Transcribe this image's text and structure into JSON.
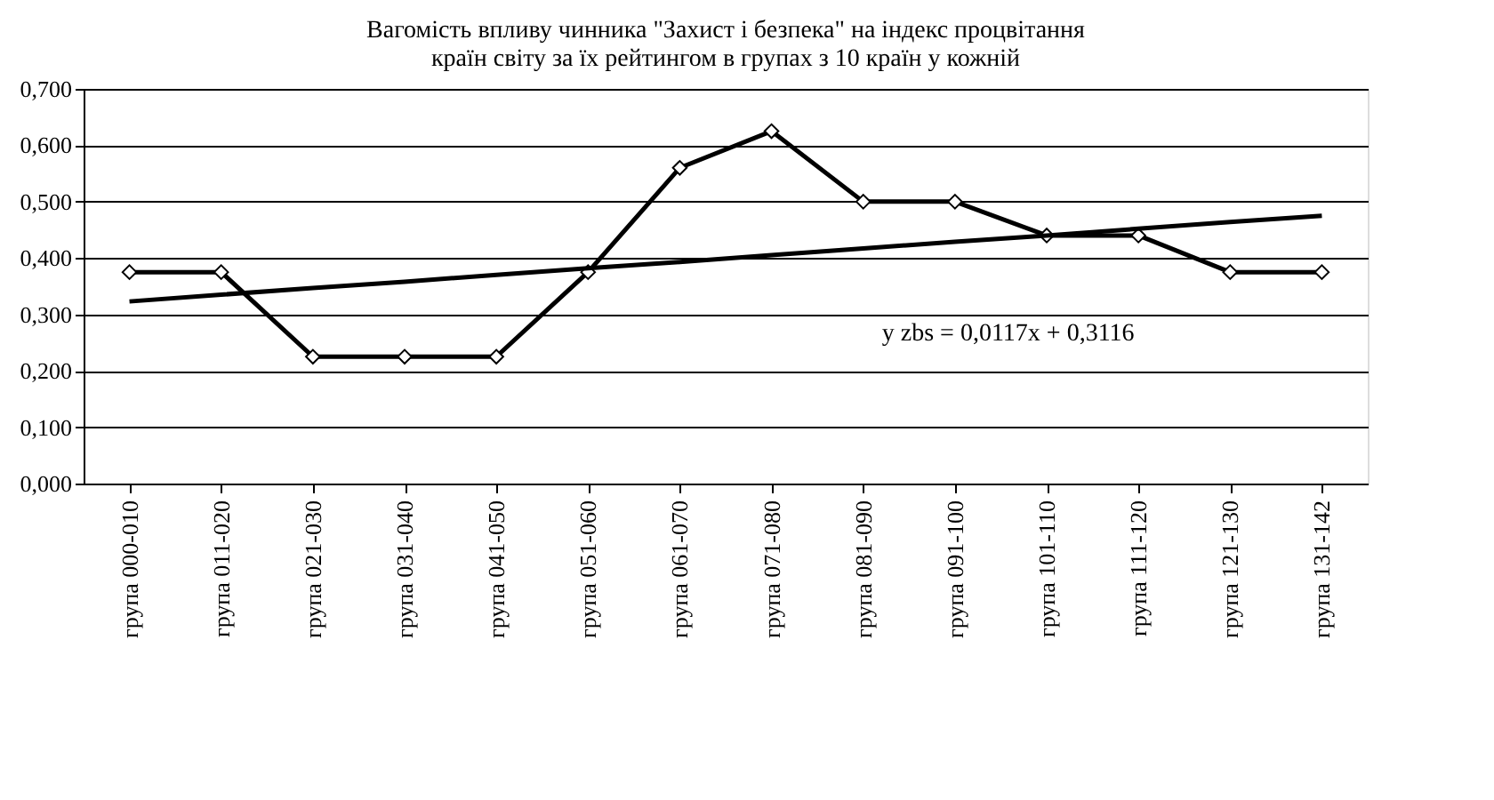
{
  "chart_data": {
    "type": "line",
    "title": "Вагомість впливу чинника \"Захист і безпека\" на індекс процвітання\nкраїн світу за їх рейтингом в групах з 10 країн у кожній",
    "categories": [
      "група 000-010",
      "група 011-020",
      "група 021-030",
      "група 031-040",
      "група 041-050",
      "група 051-060",
      "група 061-070",
      "група 071-080",
      "група 081-090",
      "група 091-100",
      "група 101-110",
      "група 111-120",
      "група 121-130",
      "група 131-142"
    ],
    "series": [
      {
        "color": "#000000",
        "marker": "diamond",
        "values": [
          0.375,
          0.375,
          0.225,
          0.225,
          0.225,
          0.375,
          0.56,
          0.625,
          0.5,
          0.5,
          0.44,
          0.44,
          0.375,
          0.375
        ]
      },
      {
        "color": "#000000",
        "marker": "none",
        "values": [
          0.323,
          0.335,
          0.347,
          0.358,
          0.37,
          0.382,
          0.393,
          0.405,
          0.417,
          0.429,
          0.44,
          0.452,
          0.464,
          0.475
        ]
      }
    ],
    "ylim": [
      0,
      0.7
    ],
    "yticks": [
      {
        "value": 0,
        "label": "0,000"
      },
      {
        "value": 0.1,
        "label": "0,100"
      },
      {
        "value": 0.2,
        "label": "0,200"
      },
      {
        "value": 0.3,
        "label": "0,300"
      },
      {
        "value": 0.4,
        "label": "0,400"
      },
      {
        "value": 0.5,
        "label": "0,500"
      },
      {
        "value": 0.6,
        "label": "0,600"
      },
      {
        "value": 0.7,
        "label": "0,700"
      }
    ],
    "grid": "y",
    "line_style": "solid",
    "annotations": [
      "y zbs = 0,0117x + 0,3116"
    ]
  }
}
